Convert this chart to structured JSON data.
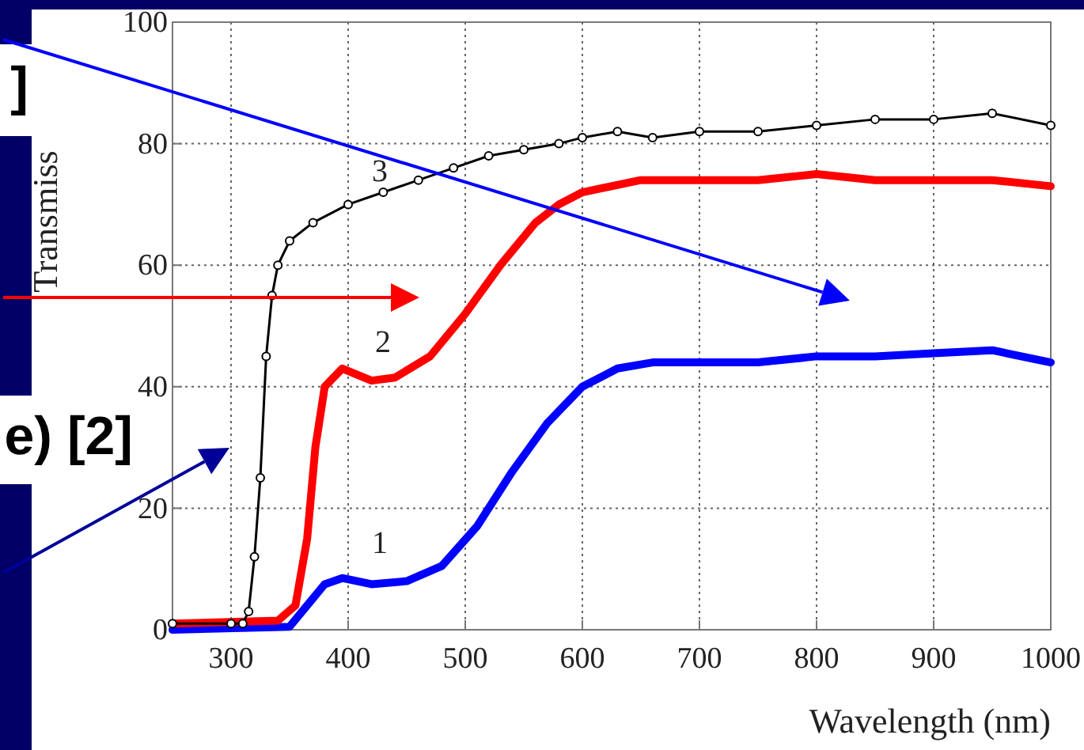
{
  "chart_data": {
    "type": "line",
    "xlabel": "Wavelength (nm)",
    "ylabel": "Transmiss",
    "xlim": [
      250,
      1000
    ],
    "xticks": [
      300,
      400,
      500,
      600,
      700,
      800,
      900,
      1000
    ],
    "ylim": [
      0,
      100
    ],
    "yticks": [
      0,
      20,
      40,
      60,
      80,
      100
    ],
    "grid": true,
    "line_style": "solid",
    "series": [
      {
        "name": "3",
        "color": "#000000",
        "marker": "circle",
        "x": [
          250,
          300,
          310,
          315,
          320,
          325,
          330,
          335,
          340,
          350,
          370,
          400,
          430,
          460,
          490,
          520,
          550,
          580,
          600,
          630,
          660,
          700,
          750,
          800,
          850,
          900,
          950,
          1000
        ],
        "values": [
          1,
          1,
          1,
          3,
          12,
          25,
          45,
          55,
          60,
          64,
          67,
          70,
          72,
          74,
          76,
          78,
          79,
          80,
          81,
          82,
          81,
          82,
          82,
          83,
          84,
          84,
          85,
          83
        ]
      },
      {
        "name": "2",
        "color": "#ff0000",
        "marker": "none",
        "x": [
          250,
          340,
          355,
          365,
          372,
          380,
          395,
          420,
          440,
          470,
          500,
          530,
          560,
          580,
          600,
          650,
          700,
          750,
          800,
          850,
          900,
          950,
          1000
        ],
        "values": [
          1,
          1.5,
          4,
          15,
          30,
          40,
          43,
          41,
          41.5,
          45,
          52,
          60,
          67,
          70,
          72,
          74,
          74,
          74,
          75,
          74,
          74,
          74,
          73
        ]
      },
      {
        "name": "1",
        "color": "#0000ff",
        "marker": "none",
        "x": [
          250,
          350,
          365,
          380,
          395,
          420,
          450,
          480,
          510,
          540,
          570,
          600,
          630,
          660,
          700,
          750,
          800,
          850,
          900,
          950,
          1000
        ],
        "values": [
          0,
          0.5,
          4,
          7.5,
          8.5,
          7.5,
          8,
          10.5,
          17,
          26,
          34,
          40,
          43,
          44,
          44,
          44,
          45,
          45,
          45.5,
          46,
          44
        ]
      }
    ],
    "annotations": [
      "]",
      "e) [2]"
    ]
  }
}
